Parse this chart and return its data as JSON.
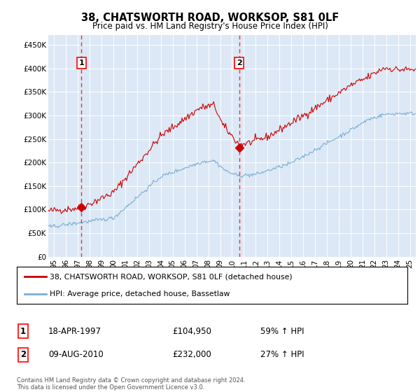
{
  "title": "38, CHATSWORTH ROAD, WORKSOP, S81 0LF",
  "subtitle": "Price paid vs. HM Land Registry's House Price Index (HPI)",
  "plot_bg_color": "#dce8f5",
  "red_line_color": "#cc0000",
  "blue_line_color": "#7aaed4",
  "sale1": {
    "date_num": 1997.29,
    "price": 104950,
    "label": "1",
    "date_str": "18-APR-1997",
    "hpi_pct": "59% ↑ HPI"
  },
  "sale2": {
    "date_num": 2010.6,
    "price": 232000,
    "label": "2",
    "date_str": "09-AUG-2010",
    "hpi_pct": "27% ↑ HPI"
  },
  "legend_line1": "38, CHATSWORTH ROAD, WORKSOP, S81 0LF (detached house)",
  "legend_line2": "HPI: Average price, detached house, Bassetlaw",
  "table_row1": [
    "1",
    "18-APR-1997",
    "£104,950",
    "59% ↑ HPI"
  ],
  "table_row2": [
    "2",
    "09-AUG-2010",
    "£232,000",
    "27% ↑ HPI"
  ],
  "footer": "Contains HM Land Registry data © Crown copyright and database right 2024.\nThis data is licensed under the Open Government Licence v3.0.",
  "ylim": [
    0,
    470000
  ],
  "xlim_start": 1994.5,
  "xlim_end": 2025.5,
  "yticks": [
    0,
    50000,
    100000,
    150000,
    200000,
    250000,
    300000,
    350000,
    400000,
    450000
  ],
  "ytick_labels": [
    "£0",
    "£50K",
    "£100K",
    "£150K",
    "£200K",
    "£250K",
    "£300K",
    "£350K",
    "£400K",
    "£450K"
  ],
  "xticks": [
    1995,
    1996,
    1997,
    1998,
    1999,
    2000,
    2001,
    2002,
    2003,
    2004,
    2005,
    2006,
    2007,
    2008,
    2009,
    2010,
    2011,
    2012,
    2013,
    2014,
    2015,
    2016,
    2017,
    2018,
    2019,
    2020,
    2021,
    2022,
    2023,
    2024,
    2025
  ],
  "xtick_labels": [
    "95",
    "96",
    "97",
    "98",
    "99",
    "00",
    "01",
    "02",
    "03",
    "04",
    "05",
    "06",
    "07",
    "08",
    "09",
    "10",
    "11",
    "12",
    "13",
    "14",
    "15",
    "16",
    "17",
    "18",
    "19",
    "20",
    "21",
    "22",
    "23",
    "24",
    "25"
  ]
}
